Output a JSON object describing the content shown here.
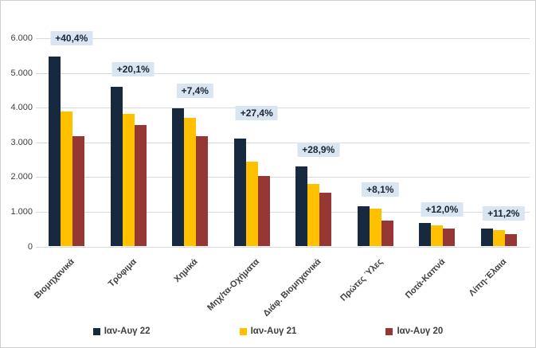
{
  "chart_data": {
    "type": "bar",
    "title": "",
    "xlabel": "",
    "ylabel": "",
    "categories": [
      "Βιομηχανικά",
      "Τρόφιμα",
      "Χημικά",
      "Μηχ/τα-Οχήματα",
      "Διάφ. Βιομηχανικά",
      "Πρώτες Ύλες",
      "Ποτά-Καπνά",
      "Λίπη-Έλαια"
    ],
    "series": [
      {
        "name": "Ιαν-Αυγ 22",
        "color": "#16293F",
        "values": [
          5480,
          4600,
          3990,
          3110,
          2310,
          1170,
          680,
          525
        ]
      },
      {
        "name": "Ιαν-Αυγ 21",
        "color": "#FFC000",
        "values": [
          3900,
          3830,
          3710,
          2440,
          1790,
          1080,
          605,
          470
        ]
      },
      {
        "name": "Ιαν-Αυγ 20",
        "color": "#963735",
        "values": [
          3180,
          3500,
          3170,
          2030,
          1540,
          740,
          505,
          360
        ]
      }
    ],
    "annotations": [
      "+40,4%",
      "+20,1%",
      "+7,4%",
      "+27,4%",
      "+28,9%",
      "+8,1%",
      "+12,0%",
      "+11,2%"
    ],
    "y_axis": {
      "ticks": [
        {
          "label": "6.000",
          "value": 6000
        },
        {
          "label": "5.000",
          "value": 5000
        },
        {
          "label": "4.000",
          "value": 4000
        },
        {
          "label": "3.000",
          "value": 3000
        },
        {
          "label": "2.000",
          "value": 2000
        },
        {
          "label": "1.000",
          "value": 1000
        },
        {
          "label": "0",
          "value": 0
        }
      ]
    },
    "ylim": [
      0,
      6000
    ],
    "grid": true,
    "legend_position": "bottom",
    "colors": {
      "annotation_bg": "#D9E5F1",
      "annotation_text": "#1A2433",
      "gridline": "#D9D9D9",
      "axis_text": "#404040",
      "background": "#FFFFFF"
    }
  }
}
